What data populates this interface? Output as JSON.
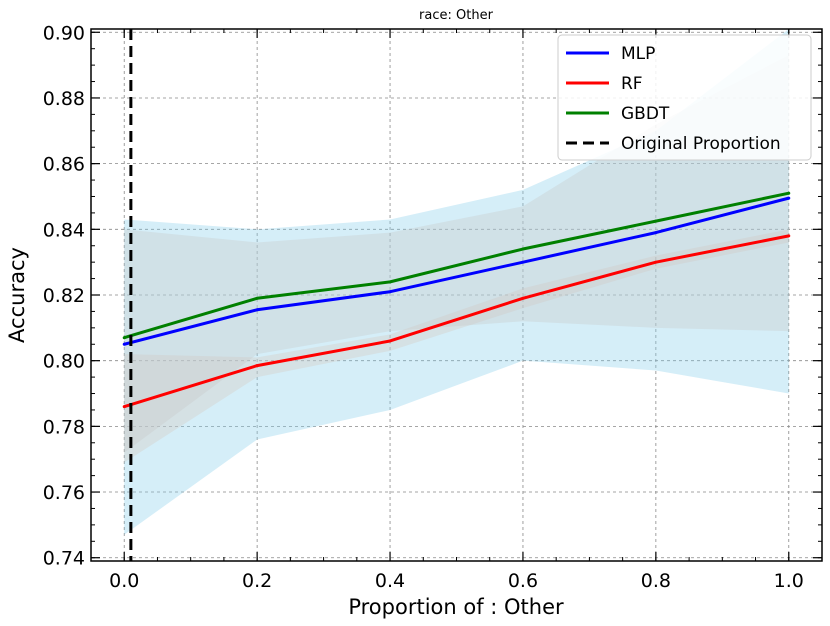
{
  "chart_data": {
    "type": "line",
    "title": "race: Other",
    "xlabel": "Proportion of : Other",
    "ylabel": "Accuracy",
    "xlim": [
      -0.05,
      1.05
    ],
    "ylim": [
      0.739,
      0.901
    ],
    "xticks": [
      0.0,
      0.2,
      0.4,
      0.6,
      0.8,
      1.0
    ],
    "xtick_labels": [
      "0.0",
      "0.2",
      "0.4",
      "0.6",
      "0.8",
      "1.0"
    ],
    "yticks": [
      0.74,
      0.76,
      0.78,
      0.8,
      0.82,
      0.84,
      0.86,
      0.88,
      0.9
    ],
    "ytick_labels": [
      "0.74",
      "0.76",
      "0.78",
      "0.80",
      "0.82",
      "0.84",
      "0.86",
      "0.88",
      "0.90"
    ],
    "grid": true,
    "legend_position": "top-right",
    "x": [
      0.0,
      0.2,
      0.4,
      0.6,
      0.8,
      1.0
    ],
    "series": [
      {
        "name": "MLP",
        "color": "#0000ff",
        "band_color": "#87ceeb",
        "values": [
          0.805,
          0.8155,
          0.821,
          0.83,
          0.839,
          0.8495
        ],
        "upper": [
          0.843,
          0.84,
          0.843,
          0.852,
          0.87,
          0.901
        ],
        "lower": [
          0.747,
          0.776,
          0.785,
          0.8,
          0.797,
          0.79
        ]
      },
      {
        "name": "RF",
        "color": "#ff0000",
        "band_color": "#d8c8c0",
        "values": [
          0.786,
          0.7985,
          0.806,
          0.819,
          0.83,
          0.838
        ],
        "upper": [
          0.802,
          0.801,
          0.808,
          0.822,
          0.832,
          0.84
        ],
        "lower": [
          0.769,
          0.795,
          0.803,
          0.816,
          0.828,
          0.836
        ]
      },
      {
        "name": "GBDT",
        "color": "#008000",
        "band_color": "#c8c8c8",
        "values": [
          0.807,
          0.819,
          0.824,
          0.834,
          0.8425,
          0.851
        ],
        "upper": [
          0.84,
          0.836,
          0.839,
          0.847,
          0.872,
          0.893
        ],
        "lower": [
          0.772,
          0.802,
          0.809,
          0.812,
          0.81,
          0.809
        ]
      }
    ],
    "reference_line": {
      "name": "Original Proportion",
      "x": 0.01,
      "color": "#000000",
      "style": "dashed"
    }
  }
}
